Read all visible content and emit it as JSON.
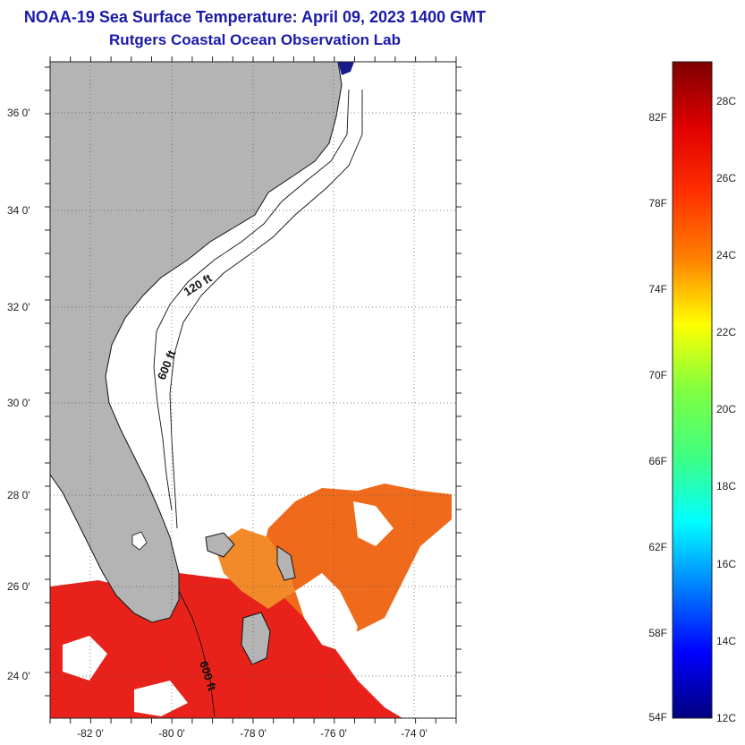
{
  "title": {
    "line1": "NOAA-19 Sea Surface Temperature:  April 09, 2023 1400 GMT",
    "line2": "Rutgers Coastal Ocean Observation Lab"
  },
  "map": {
    "lat_labels": [
      "36 0'",
      "34 0'",
      "32 0'",
      "30 0'",
      "28 0'",
      "26 0'",
      "24 0'"
    ],
    "lon_labels": [
      "-82 0'",
      "-80 0'",
      "-78 0'",
      "-76 0'",
      "-74 0'"
    ],
    "contour_labels": [
      "120 ft",
      "600 ft",
      "600 ft"
    ],
    "colors": {
      "land": "#b4b4b4",
      "ocean": "#ffffff",
      "warm_sst": "#e8221a",
      "mid_sst": "#f06a1c",
      "coast": "#111111"
    }
  },
  "colorbar": {
    "fahrenheit_labels": [
      "82F",
      "78F",
      "74F",
      "70F",
      "66F",
      "62F",
      "58F",
      "54F"
    ],
    "celsius_labels": [
      "28C",
      "26C",
      "24C",
      "22C",
      "20C",
      "18C",
      "16C",
      "14C",
      "12C"
    ],
    "stops": [
      "#00007f",
      "#0000ff",
      "#0080ff",
      "#00ffff",
      "#40ff80",
      "#80ff40",
      "#ffff00",
      "#ff8000",
      "#ff3000",
      "#e00000",
      "#7f0000"
    ]
  }
}
